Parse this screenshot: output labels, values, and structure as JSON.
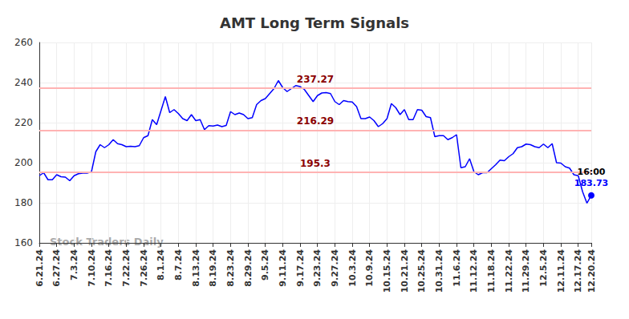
{
  "chart_data": {
    "type": "line",
    "title": "AMT Long Term Signals",
    "watermark": "Stock Traders Daily",
    "categories": [
      "6.21.24",
      null,
      null,
      null,
      "6.27.24",
      null,
      null,
      null,
      "7.3.24",
      null,
      null,
      null,
      "7.10.24",
      null,
      null,
      null,
      "7.16.24",
      null,
      null,
      null,
      "7.22.24",
      null,
      null,
      null,
      "7.26.24",
      null,
      null,
      null,
      "8.1.24",
      null,
      null,
      null,
      "8.7.24",
      null,
      null,
      null,
      "8.13.24",
      null,
      null,
      null,
      "8.19.24",
      null,
      null,
      null,
      "8.23.24",
      null,
      null,
      null,
      "8.29.24",
      null,
      null,
      null,
      "9.5.24",
      null,
      null,
      null,
      "9.11.24",
      null,
      null,
      null,
      "9.17.24",
      null,
      null,
      null,
      "9.23.24",
      null,
      null,
      null,
      "9.27.24",
      null,
      null,
      null,
      "10.3.24",
      null,
      null,
      null,
      "10.9.24",
      null,
      null,
      null,
      "10.15.24",
      null,
      null,
      null,
      "10.21.24",
      null,
      null,
      null,
      "10.25.24",
      null,
      null,
      null,
      "10.31.24",
      null,
      null,
      null,
      "11.6.24",
      null,
      null,
      null,
      "11.12.24",
      null,
      null,
      null,
      "11.18.24",
      null,
      null,
      null,
      "11.22.24",
      null,
      null,
      null,
      "11.29.24",
      null,
      null,
      null,
      "12.5.24",
      null,
      null,
      null,
      "12.11.24",
      null,
      null,
      null,
      "12.17.24",
      null,
      null,
      "12.20.24"
    ],
    "values": [
      193.5,
      195,
      191.5,
      191.5,
      194,
      193,
      192.8,
      191,
      193.5,
      194.5,
      194.8,
      194.8,
      195.5,
      205.5,
      209,
      207.5,
      209,
      211.5,
      209.5,
      209,
      208,
      208.2,
      208,
      208.5,
      212.5,
      213.5,
      221.5,
      219,
      226,
      233,
      225,
      226.5,
      224.5,
      222,
      221,
      224,
      221,
      221.5,
      216.5,
      218.5,
      218.3,
      218.8,
      218,
      218.6,
      225.5,
      224,
      224.8,
      224,
      222,
      222.5,
      229,
      231,
      232,
      234.5,
      237,
      241,
      237.5,
      235.5,
      237,
      238.5,
      238,
      236.5,
      233.5,
      230.5,
      233.5,
      234.8,
      235,
      234.5,
      230.5,
      229,
      231,
      230.5,
      230.3,
      228,
      222,
      222,
      222.8,
      221,
      218,
      219.5,
      222,
      229.5,
      227.5,
      224,
      226.5,
      221.5,
      221.5,
      226.5,
      226.2,
      223,
      222.5,
      213,
      213.5,
      213.5,
      211.5,
      212.5,
      214,
      197.5,
      198,
      202,
      195.5,
      194,
      195,
      195,
      197,
      199,
      201.3,
      201,
      203,
      204.5,
      207.5,
      208,
      209.3,
      209,
      208,
      207.5,
      209.3,
      207.5,
      209.5,
      200,
      199.8,
      198,
      197.3,
      194,
      193.5,
      185.5,
      179.8,
      183.73
    ],
    "color": "#0000ff",
    "ylim": [
      160,
      260
    ],
    "yticks": [
      160,
      180,
      200,
      220,
      240,
      260
    ],
    "grid": true,
    "levels": [
      {
        "value": 237.27,
        "label": "237.27"
      },
      {
        "value": 216.29,
        "label": "216.29"
      },
      {
        "value": 195.3,
        "label": "195.3"
      }
    ],
    "last_point": {
      "time_label": "16:00",
      "value_label": "183.73"
    }
  }
}
